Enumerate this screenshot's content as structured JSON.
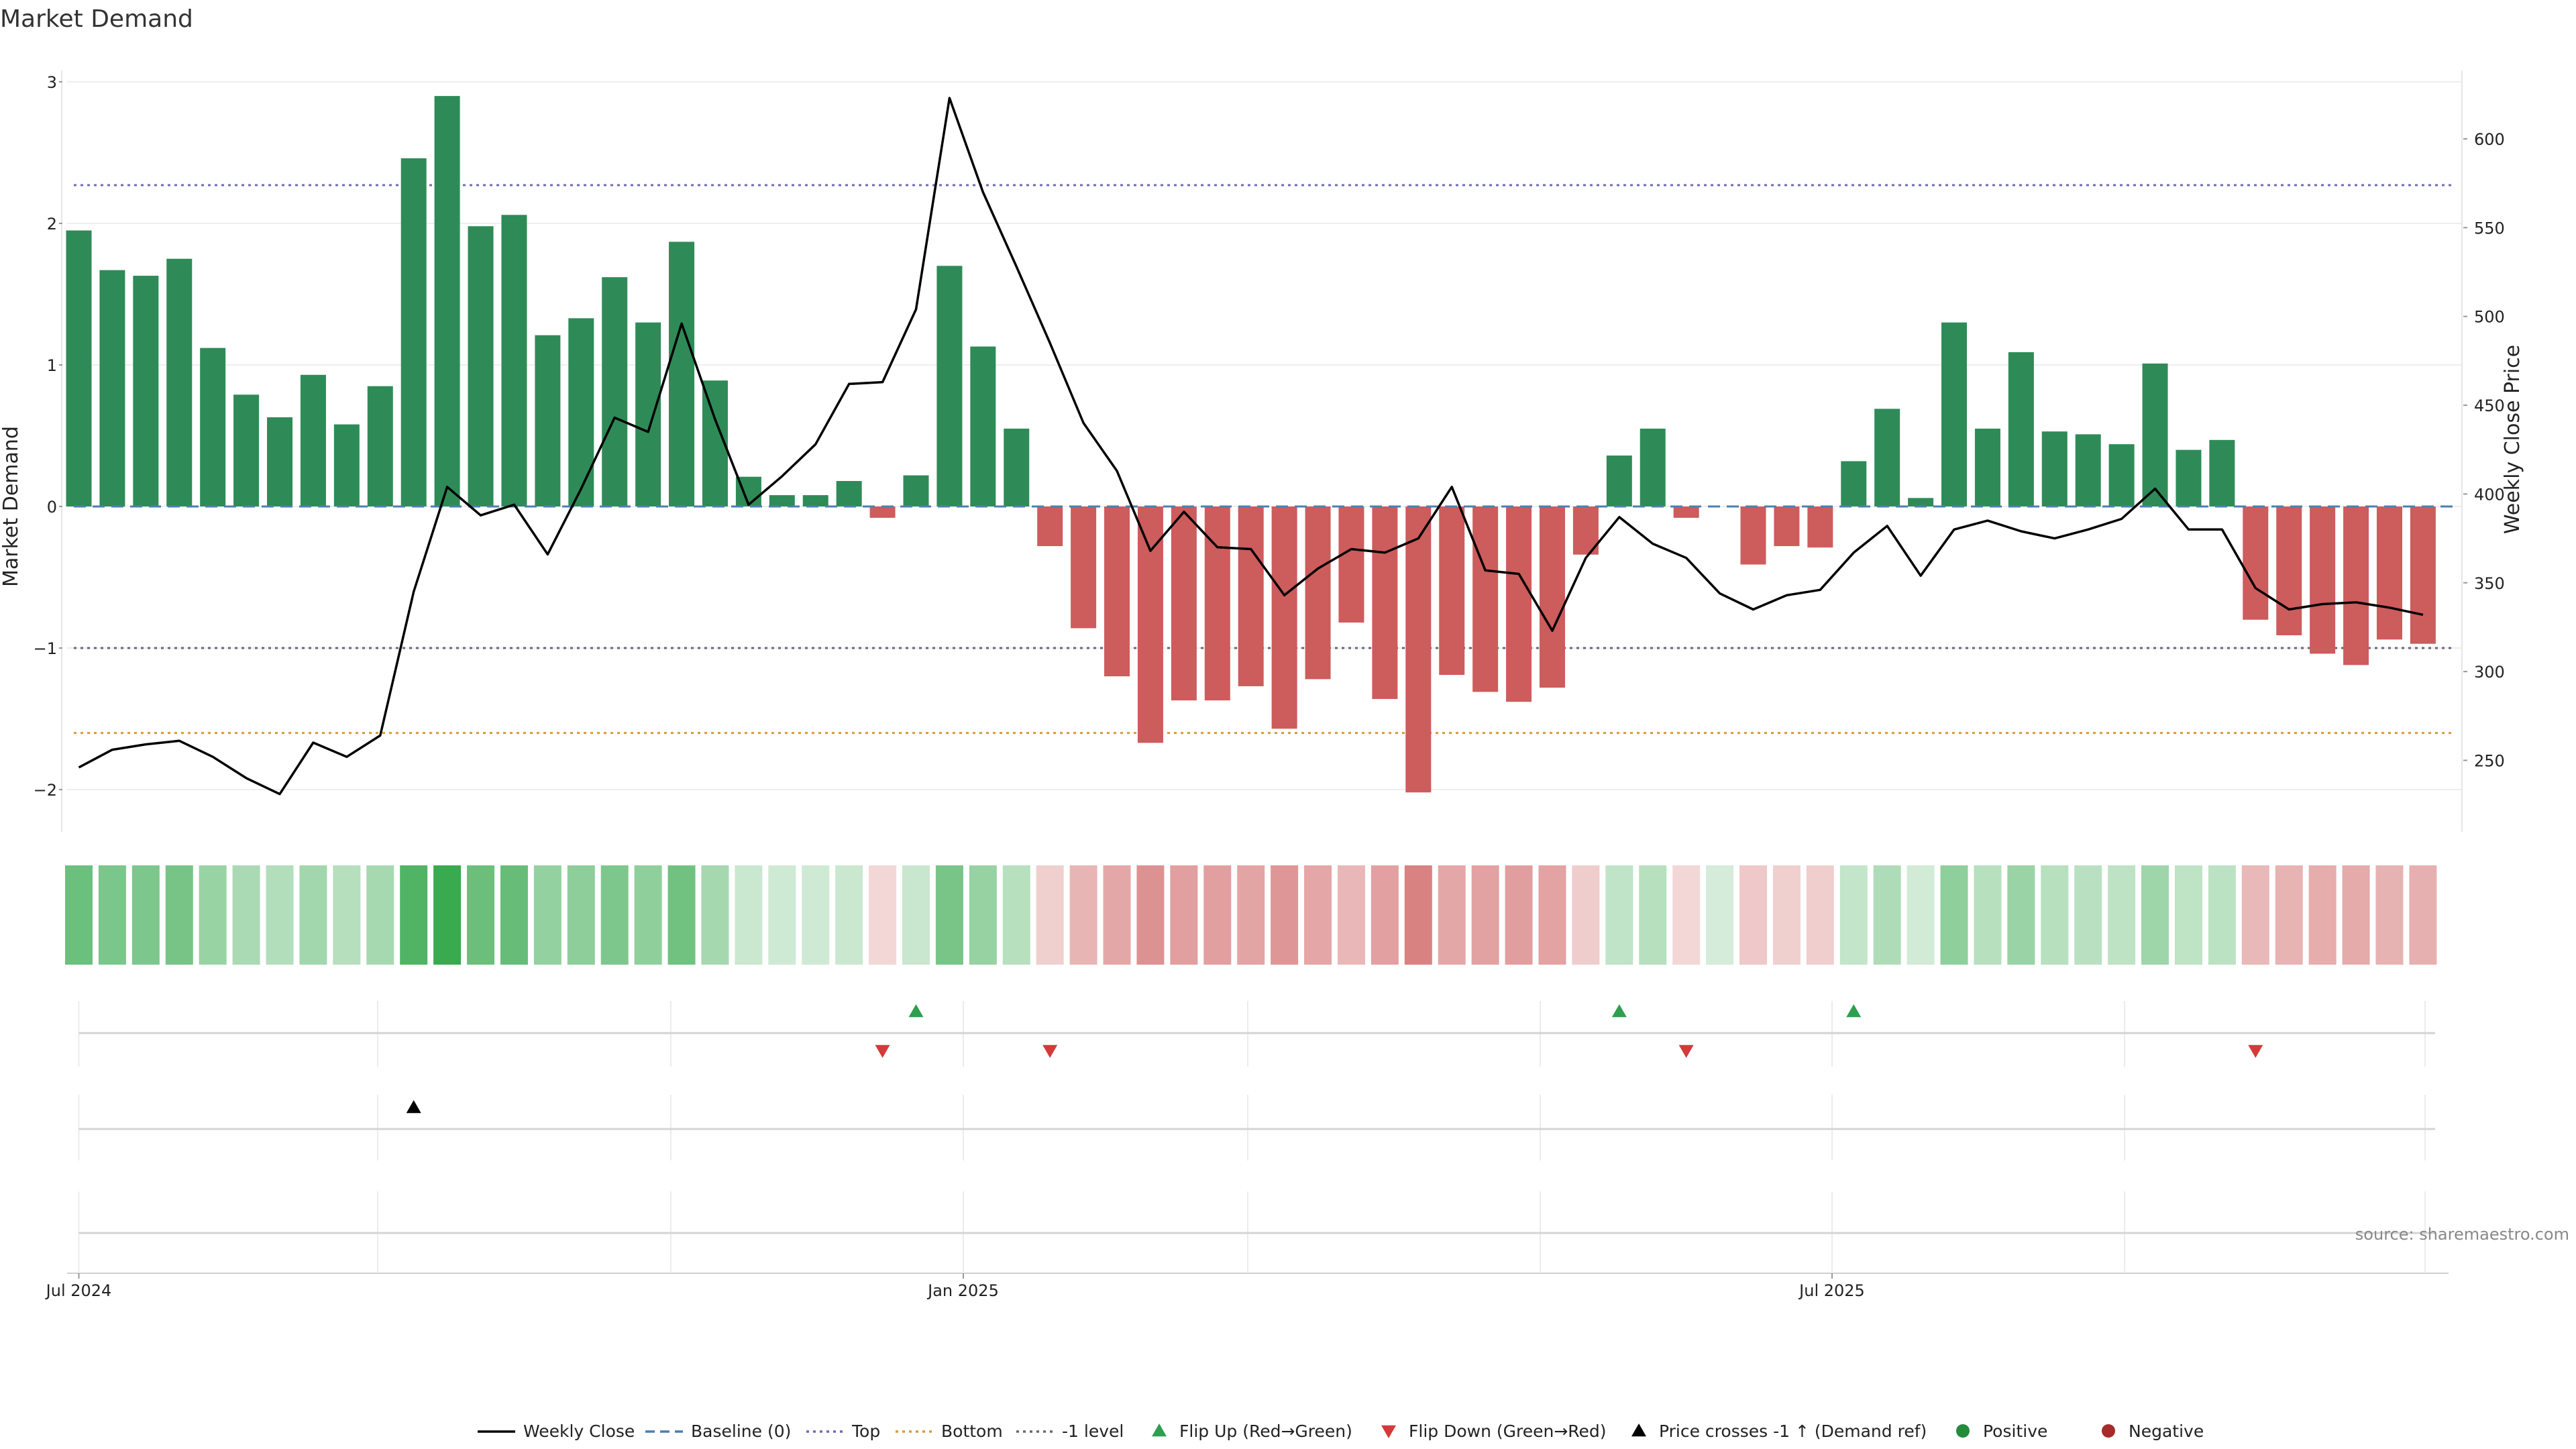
{
  "chart_data": {
    "type": "bar",
    "title": "Market Demand",
    "ylabel": "Market Demand",
    "ylabel_right": "Weekly Close Price",
    "ylim": [
      -2.3,
      3.05
    ],
    "ylim_right": [
      215,
      630
    ],
    "yticks": [
      "3",
      "2",
      "1",
      "0",
      "−1",
      "−2"
    ],
    "yticks_right": [
      "600",
      "550",
      "500",
      "450",
      "400",
      "350",
      "300",
      "250"
    ],
    "xticks": [
      "Jul 2024",
      "Jan 2025",
      "Jul 2025"
    ],
    "source": "source: sharemaestro.com",
    "reference_lines": {
      "top": 2.27,
      "baseline": 0,
      "minus_one": -1,
      "bottom": -1.6
    },
    "series": [
      {
        "name": "Market Demand",
        "values": [
          1.95,
          1.67,
          1.63,
          1.75,
          1.12,
          0.79,
          0.63,
          0.93,
          0.58,
          0.85,
          2.46,
          2.9,
          1.98,
          2.06,
          1.21,
          1.33,
          1.62,
          1.3,
          1.87,
          0.89,
          0.21,
          0.08,
          0.08,
          0.18,
          -0.08,
          0.22,
          1.7,
          1.13,
          0.55,
          -0.28,
          -0.86,
          -1.2,
          -1.67,
          -1.37,
          -1.37,
          -1.27,
          -1.57,
          -1.22,
          -0.82,
          -1.36,
          -2.02,
          -1.19,
          -1.31,
          -1.38,
          -1.28,
          -0.34,
          0.36,
          0.55,
          -0.08,
          0,
          -0.41,
          -0.28,
          -0.29,
          0.32,
          0.69,
          0.06,
          1.3,
          0.55,
          1.09,
          0.53,
          0.51,
          0.44,
          1.01,
          0.4,
          0.47,
          -0.8,
          -0.91,
          -1.04,
          -1.12,
          -0.94,
          -0.97
        ]
      },
      {
        "name": "Weekly Close",
        "values": [
          246,
          256,
          259,
          261,
          252,
          240,
          231,
          260,
          252,
          264,
          345,
          404,
          388,
          394,
          366,
          403,
          443,
          435,
          496,
          442,
          394,
          410,
          428,
          462,
          463,
          504,
          623,
          570,
          528,
          485,
          440,
          413,
          368,
          390,
          370,
          369,
          343,
          358,
          369,
          367,
          375,
          404,
          357,
          355,
          323,
          364,
          387,
          372,
          364,
          344,
          335,
          343,
          346,
          367,
          382,
          354,
          380,
          385,
          379,
          375,
          380,
          386,
          403,
          380,
          380,
          347,
          335,
          338,
          339,
          336,
          332
        ]
      }
    ],
    "flip_up_weeks": [
      25,
      46,
      53
    ],
    "flip_down_weeks": [
      24,
      29,
      48,
      65
    ],
    "price_cross_weeks": [
      10
    ],
    "legend": [
      {
        "label": "Weekly Close",
        "marker": "line",
        "color": "#000000"
      },
      {
        "label": "Baseline (0)",
        "marker": "dash",
        "color": "#4a7fb0"
      },
      {
        "label": "Top",
        "marker": "dot",
        "color": "#6e6ab5"
      },
      {
        "label": "Bottom",
        "marker": "dot",
        "color": "#d89a3a"
      },
      {
        "label": "-1 level",
        "marker": "dot",
        "color": "#666677"
      },
      {
        "label": "Flip Up (Red→Green)",
        "marker": "tri-up",
        "color": "#2e9e4f"
      },
      {
        "label": "Flip Down (Green→Red)",
        "marker": "tri-down",
        "color": "#d43a3a"
      },
      {
        "label": "Price crosses -1 ↑ (Demand ref)",
        "marker": "tri-up",
        "color": "#000000"
      },
      {
        "label": "Positive",
        "marker": "circle",
        "color": "#238b3a"
      },
      {
        "label": "Negative",
        "marker": "circle",
        "color": "#a82a2a"
      }
    ],
    "colors": {
      "positive": "#2e8b57",
      "negative": "#cd5c5c",
      "heat_positive": "#3aaa50",
      "heat_negative": "#cd5c5c"
    }
  }
}
